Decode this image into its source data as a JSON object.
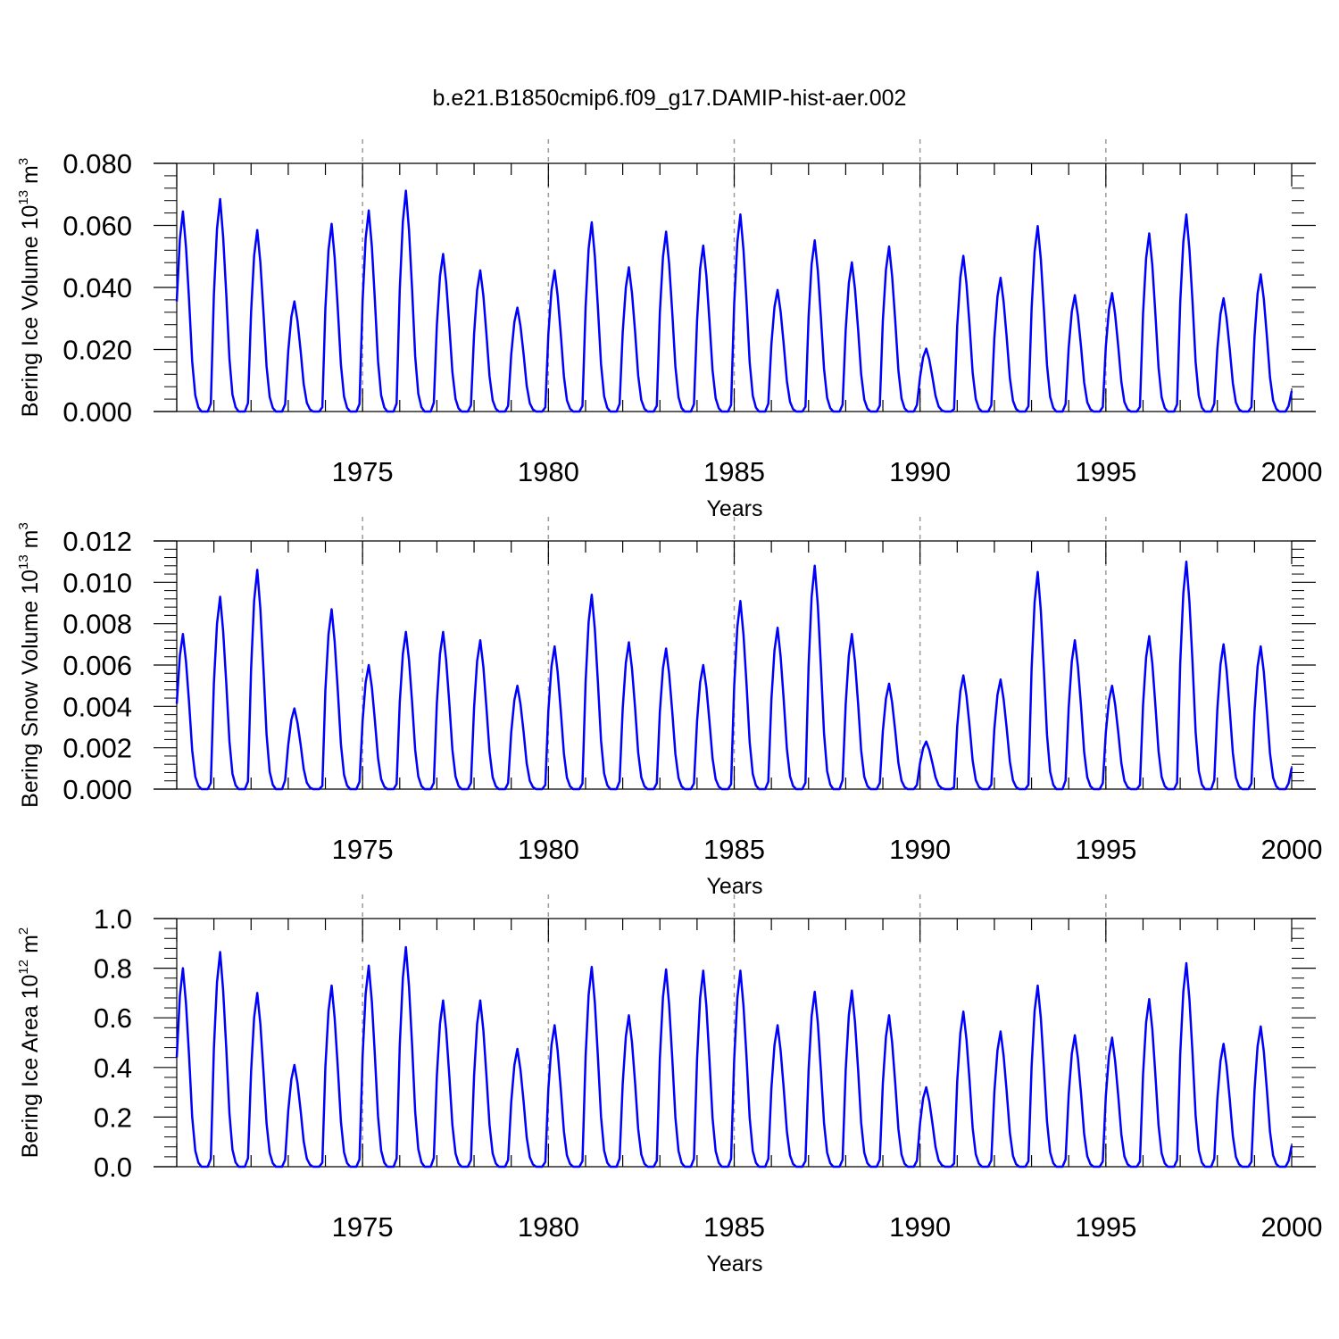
{
  "title": "b.e21.B1850cmip6.f09_g17.DAMIP-hist-aer.002",
  "colors": {
    "line": "#0000ff",
    "axis": "#000000",
    "grid": "#9a9a9a"
  },
  "chart_data": [
    {
      "type": "line",
      "ylabel_main": "Bering Ice Volume 10",
      "ylabel_exp": "13",
      "ylabel_unit": " m",
      "ylabel_unit_exp": "3",
      "xlabel": "Years",
      "xlim": [
        1970,
        2000
      ],
      "ylim": [
        0,
        0.08
      ],
      "yticks": [
        "0.000",
        "0.020",
        "0.040",
        "0.060",
        "0.080"
      ],
      "xticks": [
        "1975",
        "1980",
        "1985",
        "1990",
        "1995",
        "2000"
      ],
      "grid_x": [
        1975,
        1980,
        1985,
        1990,
        1995
      ],
      "series": [
        {
          "name": "Bering Ice Volume",
          "peaks": [
            0.0645,
            0.0685,
            0.0585,
            0.0355,
            0.0605,
            0.0648,
            0.0712,
            0.0508,
            0.0455,
            0.0335,
            0.0455,
            0.061,
            0.0465,
            0.058,
            0.0535,
            0.0635,
            0.0392,
            0.0552,
            0.0481,
            0.0532,
            0.0203,
            0.0502,
            0.0431,
            0.0598,
            0.0375,
            0.0382,
            0.0574,
            0.0635,
            0.0365,
            0.0442
          ]
        }
      ]
    },
    {
      "type": "line",
      "ylabel_main": "Bering Snow Volume 10",
      "ylabel_exp": "13",
      "ylabel_unit": " m",
      "ylabel_unit_exp": "3",
      "xlabel": "Years",
      "xlim": [
        1970,
        2000
      ],
      "ylim": [
        0,
        0.012
      ],
      "yticks": [
        "0.000",
        "0.002",
        "0.004",
        "0.006",
        "0.008",
        "0.010",
        "0.012"
      ],
      "xticks": [
        "1975",
        "1980",
        "1985",
        "1990",
        "1995",
        "2000"
      ],
      "grid_x": [
        1975,
        1980,
        1985,
        1990,
        1995
      ],
      "series": [
        {
          "name": "Bering Snow Volume",
          "peaks": [
            0.0075,
            0.0093,
            0.0106,
            0.0039,
            0.0087,
            0.006,
            0.0076,
            0.0076,
            0.0072,
            0.005,
            0.0069,
            0.0094,
            0.0071,
            0.0068,
            0.006,
            0.0091,
            0.0078,
            0.0108,
            0.0075,
            0.0051,
            0.0023,
            0.0055,
            0.0053,
            0.0105,
            0.0072,
            0.005,
            0.0074,
            0.011,
            0.007,
            0.0069
          ]
        }
      ]
    },
    {
      "type": "line",
      "ylabel_main": "Bering Ice Area 10",
      "ylabel_exp": "12",
      "ylabel_unit": " m",
      "ylabel_unit_exp": "2",
      "xlabel": "Years",
      "xlim": [
        1970,
        2000
      ],
      "ylim": [
        0,
        1.0
      ],
      "yticks": [
        "0.0",
        "0.2",
        "0.4",
        "0.6",
        "0.8",
        "1.0"
      ],
      "xticks": [
        "1975",
        "1980",
        "1985",
        "1990",
        "1995",
        "2000"
      ],
      "grid_x": [
        1975,
        1980,
        1985,
        1990,
        1995
      ],
      "series": [
        {
          "name": "Bering Ice Area",
          "peaks": [
            0.8,
            0.865,
            0.7,
            0.41,
            0.73,
            0.81,
            0.885,
            0.67,
            0.67,
            0.475,
            0.57,
            0.805,
            0.61,
            0.795,
            0.79,
            0.79,
            0.57,
            0.705,
            0.71,
            0.61,
            0.32,
            0.625,
            0.545,
            0.73,
            0.53,
            0.52,
            0.675,
            0.82,
            0.495,
            0.565
          ]
        }
      ]
    }
  ]
}
